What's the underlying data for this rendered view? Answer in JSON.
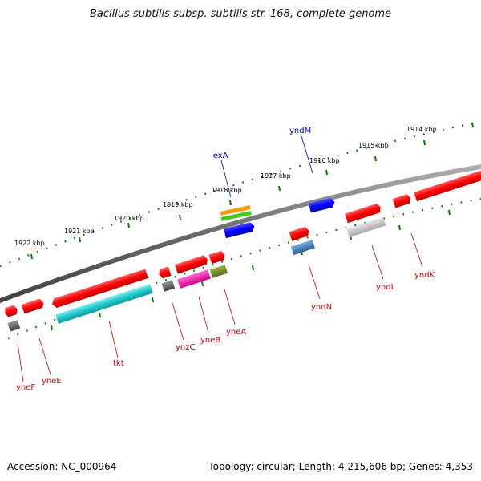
{
  "title": "Bacillus subtilis subsp. subtilis str. 168, complete genome",
  "footer": {
    "accession": "Accession: NC_000964",
    "summary": "Topology: circular; Length: 4,215,606 bp; Genes: 4,353"
  },
  "kbp_ticks": [
    {
      "label": "1922 kbp"
    },
    {
      "label": "1921 kbp"
    },
    {
      "label": "1920 kbp"
    },
    {
      "label": "1919 kbp"
    },
    {
      "label": "1918 kbp"
    },
    {
      "label": "1917 kbp"
    },
    {
      "label": "1916 kbp"
    },
    {
      "label": "1915 kbp"
    },
    {
      "label": "1914 kbp"
    }
  ],
  "gene_labels": [
    {
      "name": "yneF",
      "color": "#cc0000"
    },
    {
      "name": "yneE",
      "color": "#cc0000"
    },
    {
      "name": "tkt",
      "color": "#cc0000"
    },
    {
      "name": "ynzC",
      "color": "#cc0000"
    },
    {
      "name": "yneB",
      "color": "#cc0000"
    },
    {
      "name": "yneA",
      "color": "#cc0000"
    },
    {
      "name": "lexA",
      "color": "#0000cc"
    },
    {
      "name": "yndM",
      "color": "#0000cc"
    },
    {
      "name": "yndN",
      "color": "#cc0000"
    },
    {
      "name": "yndL",
      "color": "#cc0000"
    },
    {
      "name": "yndK",
      "color": "#cc0000"
    }
  ]
}
